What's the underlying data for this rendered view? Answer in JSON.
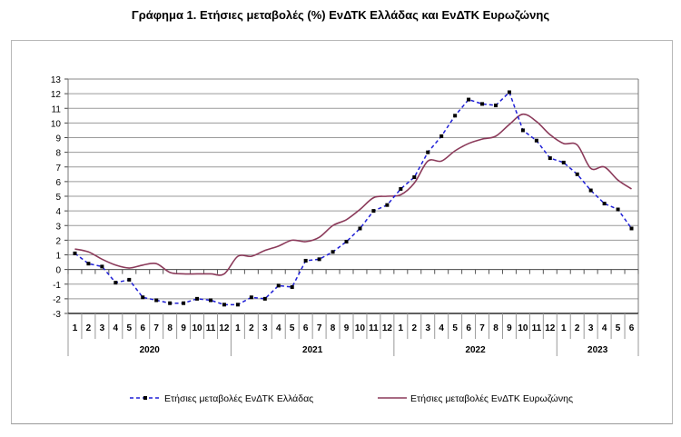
{
  "chart_data": {
    "type": "line",
    "title": "Γράφημα 1. Ετήσιες μεταβολές (%) ΕνΔΤΚ Ελλάδας και ΕνΔΤΚ Ευρωζώνης",
    "xlabel": "",
    "ylabel": "",
    "ylim": [
      -3,
      13
    ],
    "yticks": [
      -3,
      -2,
      -1,
      0,
      1,
      2,
      3,
      4,
      5,
      6,
      7,
      8,
      9,
      10,
      11,
      12,
      13
    ],
    "grid": true,
    "legend": "bottom",
    "years": [
      {
        "label": "2020",
        "months": 12
      },
      {
        "label": "2021",
        "months": 12
      },
      {
        "label": "2022",
        "months": 12
      },
      {
        "label": "2023",
        "months": 6
      }
    ],
    "categories": [
      "1",
      "2",
      "3",
      "4",
      "5",
      "6",
      "7",
      "8",
      "9",
      "10",
      "11",
      "12",
      "1",
      "2",
      "3",
      "4",
      "5",
      "6",
      "7",
      "8",
      "9",
      "10",
      "11",
      "12",
      "1",
      "2",
      "3",
      "4",
      "5",
      "6",
      "7",
      "8",
      "9",
      "10",
      "11",
      "12",
      "1",
      "2",
      "3",
      "4",
      "5",
      "6"
    ],
    "series": [
      {
        "name": "Ετήσιες μεταβολές ΕνΔΤΚ Ελλάδας",
        "color": "#1f1fd6",
        "style": "dashed-markers",
        "values": [
          1.1,
          0.4,
          0.2,
          -0.9,
          -0.7,
          -1.9,
          -2.1,
          -2.3,
          -2.3,
          -2.0,
          -2.1,
          -2.4,
          -2.4,
          -1.9,
          -2.0,
          -1.1,
          -1.2,
          0.6,
          0.7,
          1.2,
          1.9,
          2.8,
          4.0,
          4.4,
          5.5,
          6.3,
          8.0,
          9.1,
          10.5,
          11.6,
          11.3,
          11.2,
          12.1,
          9.5,
          8.8,
          7.6,
          7.3,
          6.5,
          5.4,
          4.5,
          4.1,
          2.8
        ]
      },
      {
        "name": "Ετήσιες μεταβολές ΕνΔΤΚ Ευρωζώνης",
        "color": "#8b3a5a",
        "style": "solid-smooth",
        "values": [
          1.4,
          1.2,
          0.7,
          0.3,
          0.1,
          0.3,
          0.4,
          -0.2,
          -0.3,
          -0.3,
          -0.3,
          -0.3,
          0.9,
          0.9,
          1.3,
          1.6,
          2.0,
          1.9,
          2.2,
          3.0,
          3.4,
          4.1,
          4.9,
          5.0,
          5.1,
          5.9,
          7.4,
          7.4,
          8.1,
          8.6,
          8.9,
          9.1,
          9.9,
          10.6,
          10.1,
          9.2,
          8.6,
          8.5,
          6.9,
          7.0,
          6.1,
          5.5
        ]
      }
    ]
  }
}
